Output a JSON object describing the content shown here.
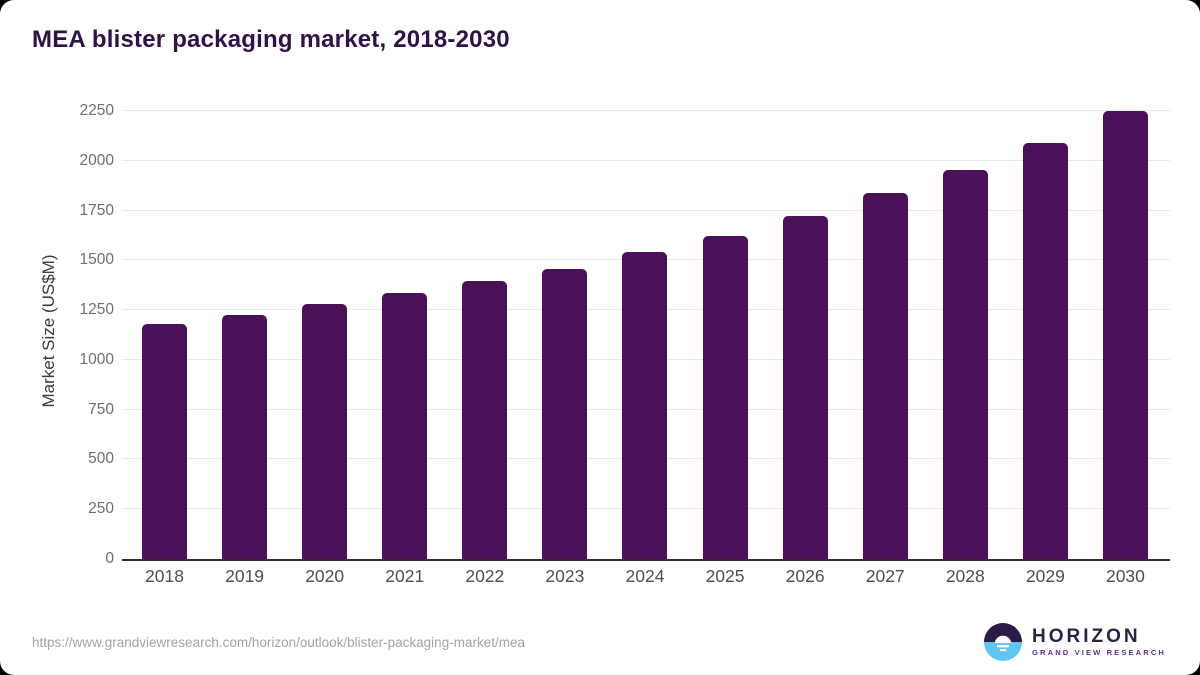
{
  "page": {
    "title": "MEA blister packaging market, 2018-2030",
    "source_url": "https://www.grandviewresearch.com/horizon/outlook/blister-packaging-market/mea"
  },
  "branding": {
    "name": "HORIZON",
    "subtitle": "GRAND VIEW RESEARCH",
    "logo_colors": {
      "top": "#2e1a47",
      "bottom": "#5ec6f2",
      "glyph": "#ffffff"
    }
  },
  "chart_data": {
    "type": "bar",
    "title": "MEA blister packaging market, 2018-2030",
    "categories": [
      "2018",
      "2019",
      "2020",
      "2021",
      "2022",
      "2023",
      "2024",
      "2025",
      "2026",
      "2027",
      "2028",
      "2029",
      "2030"
    ],
    "values": [
      1180,
      1228,
      1279,
      1334,
      1395,
      1459,
      1540,
      1624,
      1722,
      1836,
      1954,
      2090,
      2248
    ],
    "xlabel": "",
    "ylabel": "Market Size (US$M)",
    "ylim": [
      0,
      2250
    ],
    "yticks": [
      0,
      250,
      500,
      750,
      1000,
      1250,
      1500,
      1750,
      2000,
      2250
    ],
    "bar_color": "#4a1158",
    "grid": "horizontal",
    "legend": "none"
  }
}
